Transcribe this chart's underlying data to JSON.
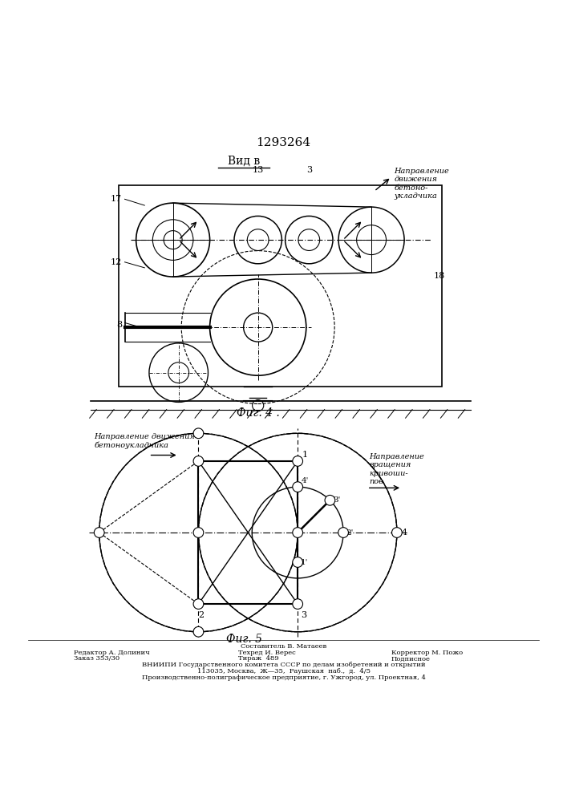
{
  "patent_number": "1293264",
  "bg_color": "#ffffff",
  "line_color": "#000000",
  "footer_lines": [
    "Составитель В. Матаеев",
    "Редактор А. Долинич",
    "Техред И. Верес",
    "Корректор М. Пожо",
    "Заказ 353/30",
    "Тираж  489",
    "Подписное",
    "ВНИИПИ Государственного комитета СССР по делам изобретений и открытий",
    "113035, Москва,  Ж—35,  Раушская  наб.,  д.  4/5",
    "Производственно-полиграфическое предприятие, г. Ужгород, ул. Проектная, 4"
  ]
}
